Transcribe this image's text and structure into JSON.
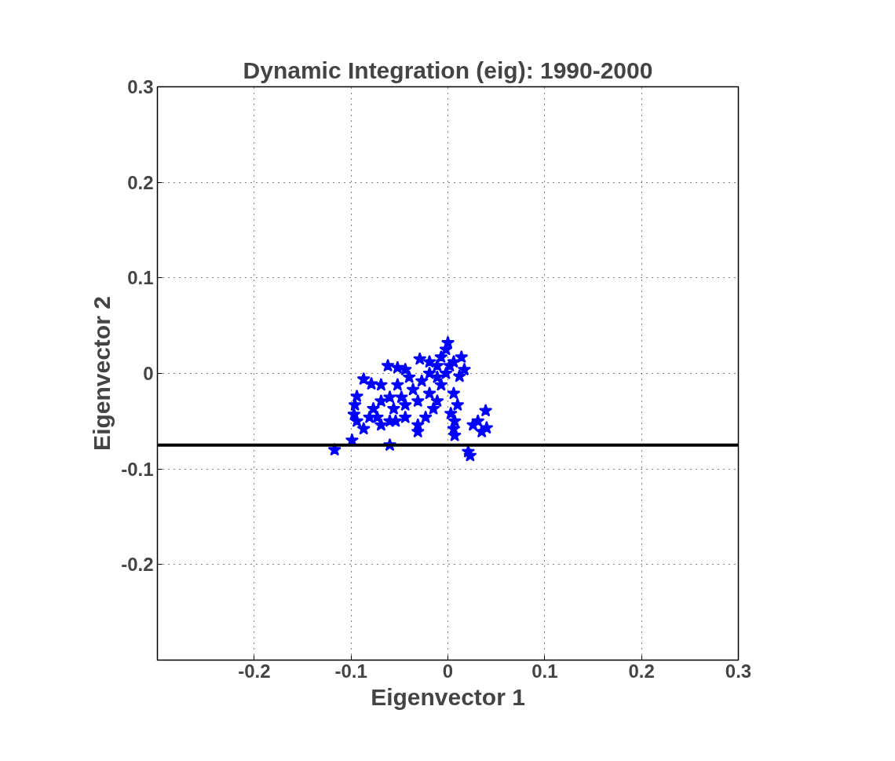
{
  "chart_data": {
    "type": "scatter",
    "title": "Dynamic Integration (eig): 1990-2000",
    "xlabel": "Eigenvector 1",
    "ylabel": "Eigenvector 2",
    "xlim": [
      -0.3,
      0.3
    ],
    "ylim": [
      -0.3,
      0.3
    ],
    "xticks": [
      -0.2,
      -0.1,
      0,
      0.1,
      0.2,
      0.3
    ],
    "yticks": [
      -0.2,
      -0.1,
      0,
      0.1,
      0.2,
      0.3
    ],
    "grid": true,
    "marker": "star",
    "ref_lines": [
      {
        "axis": "y",
        "value": -0.075,
        "color": "#000000"
      }
    ],
    "series": [
      {
        "color": "#0000ff",
        "x": [
          -0.117,
          -0.099,
          -0.06,
          0.007,
          0.021,
          0.023,
          0.039,
          0.031,
          0.04,
          0.035,
          0.026,
          0.0,
          -0.002,
          -0.094,
          -0.096,
          -0.097,
          -0.094,
          -0.087,
          -0.079,
          -0.069,
          -0.062,
          -0.052,
          -0.044,
          -0.029,
          -0.019,
          -0.011,
          -0.007,
          0.014,
          0.017,
          0.012,
          0.006,
          0.01,
          0.003,
          0.007,
          0.006,
          -0.077,
          -0.073,
          -0.069,
          -0.081,
          -0.069,
          -0.06,
          -0.054,
          -0.044,
          -0.031,
          -0.031,
          -0.023,
          -0.015,
          -0.011,
          -0.019,
          -0.036,
          -0.027,
          -0.04,
          -0.052,
          -0.031,
          -0.044,
          -0.048,
          -0.007,
          -0.002,
          0.002,
          0.006,
          -0.011,
          -0.019,
          -0.056,
          -0.06,
          -0.087
        ],
        "values": [
          -0.08,
          -0.07,
          -0.075,
          -0.065,
          -0.082,
          -0.086,
          -0.039,
          -0.05,
          -0.057,
          -0.061,
          -0.054,
          0.032,
          0.025,
          -0.024,
          -0.033,
          -0.043,
          -0.05,
          -0.006,
          -0.011,
          -0.012,
          0.008,
          0.006,
          0.004,
          0.015,
          0.012,
          0.008,
          0.017,
          0.017,
          0.004,
          -0.003,
          -0.021,
          -0.033,
          -0.042,
          -0.05,
          -0.058,
          -0.037,
          -0.046,
          -0.054,
          -0.046,
          -0.029,
          -0.025,
          -0.05,
          -0.046,
          -0.054,
          -0.061,
          -0.046,
          -0.037,
          -0.029,
          -0.021,
          -0.017,
          -0.008,
          -0.004,
          -0.012,
          -0.029,
          -0.033,
          -0.025,
          -0.012,
          0.0,
          0.008,
          0.012,
          -0.004,
          0.0,
          -0.037,
          -0.05,
          -0.058
        ]
      }
    ]
  }
}
